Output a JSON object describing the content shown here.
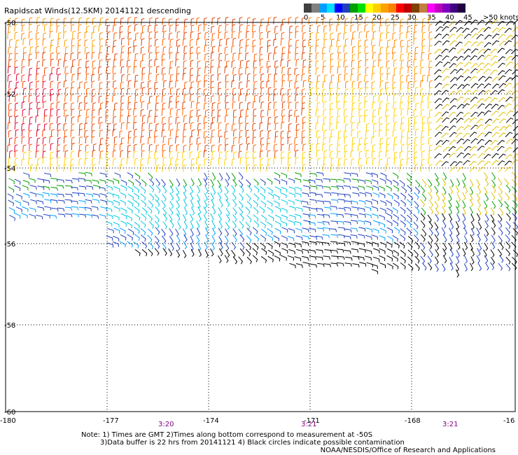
{
  "title": "Rapidscat Winds(12.5KM) 20141121 descending",
  "legend": {
    "colors": [
      "#404040",
      "#808080",
      "#00a0ff",
      "#00e0ff",
      "#0000ff",
      "#2040c0",
      "#00a000",
      "#00e000",
      "#ffff00",
      "#ffd000",
      "#ffa000",
      "#ff8000",
      "#ff0000",
      "#c00000",
      "#804000",
      "#c08040",
      "#ff00ff",
      "#c000c0",
      "#8000c0",
      "#400080",
      "#200040"
    ],
    "ticks": [
      "0",
      "5",
      "10",
      "15",
      "20",
      "25",
      "30",
      "35",
      "40",
      "45",
      ">50 knots"
    ]
  },
  "axes": {
    "lon_ticks": [
      "-180",
      "-177",
      "-174",
      "-171",
      "-168",
      "-16"
    ],
    "lat_ticks": [
      "-50",
      "-52",
      "-54",
      "-56",
      "-58",
      "-60"
    ]
  },
  "times": [
    "3:20",
    "3:21",
    "3:21"
  ],
  "notes": {
    "line1": "Note: 1) Times are GMT 2)Times along bottom correspond to measurement at -50S",
    "line2": "3)Data buffer is 22 hrs from 20141121 4) Black circles indicate possible contamination"
  },
  "credit": "NOAA/NESDIS/Office of Research and Applications"
}
